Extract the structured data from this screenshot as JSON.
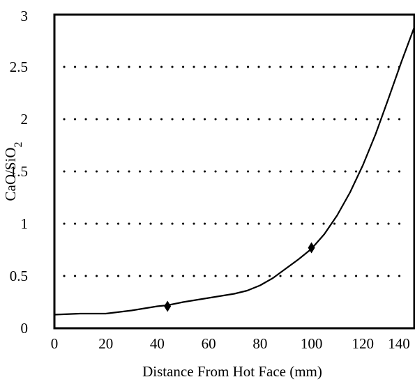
{
  "chart_data": {
    "type": "line",
    "title": "",
    "xlabel": "Distance From Hot Face (mm)",
    "ylabel_parts": {
      "base": "CaO/SiO",
      "subscript": "2"
    },
    "xlim": [
      0,
      140
    ],
    "ylim": [
      0,
      3
    ],
    "x_ticks": [
      "0",
      "20",
      "40",
      "60",
      "80",
      "100",
      "120",
      "140"
    ],
    "y_ticks": [
      "0",
      "0.5",
      "1",
      "1.5",
      "2",
      "2.5",
      "3"
    ],
    "grid": {
      "horizontal": "dotted",
      "vertical": "none"
    },
    "legend": "none",
    "series": [
      {
        "color": "#000000",
        "x": [
          0,
          10,
          20,
          30,
          35,
          40,
          44,
          50,
          60,
          70,
          75,
          80,
          85,
          90,
          95,
          100,
          105,
          110,
          115,
          120,
          125,
          130,
          135,
          140,
          142
        ],
        "y": [
          0.13,
          0.14,
          0.14,
          0.17,
          0.19,
          0.21,
          0.22,
          0.25,
          0.29,
          0.33,
          0.36,
          0.41,
          0.48,
          0.57,
          0.66,
          0.76,
          0.9,
          1.08,
          1.3,
          1.56,
          1.86,
          2.2,
          2.55,
          2.88,
          2.98
        ]
      }
    ],
    "markers": [
      {
        "x": 44,
        "y": 0.21
      },
      {
        "x": 100,
        "y": 0.77
      }
    ]
  }
}
